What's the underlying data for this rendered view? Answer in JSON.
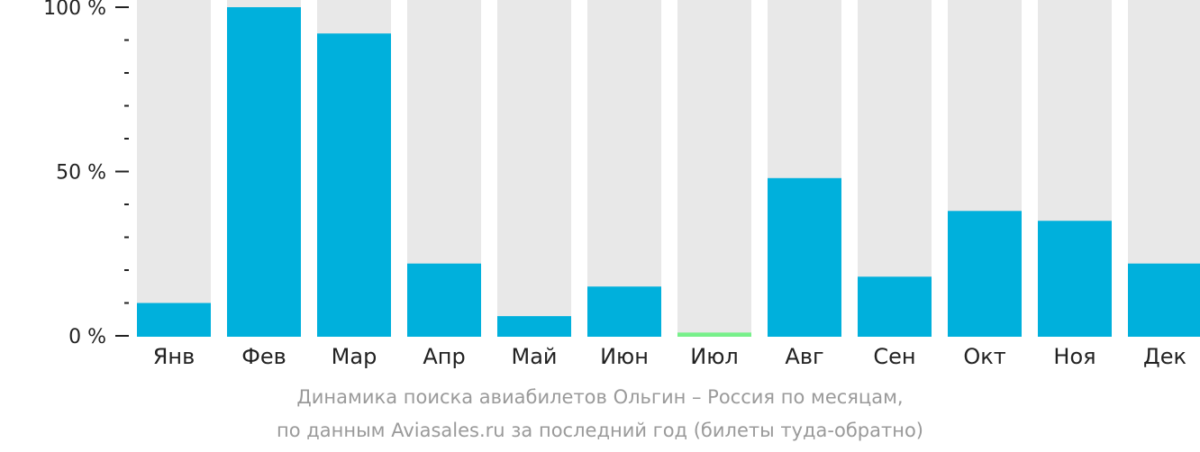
{
  "chart_data": {
    "type": "bar",
    "categories": [
      "Янв",
      "Фев",
      "Мар",
      "Апр",
      "Май",
      "Июн",
      "Июл",
      "Авг",
      "Сен",
      "Окт",
      "Ноя",
      "Дек"
    ],
    "values": [
      10,
      100,
      92,
      22,
      6,
      15,
      1,
      48,
      18,
      38,
      35,
      22
    ],
    "highlight_index": 6,
    "ylim": [
      0,
      100
    ],
    "yticks": [
      "0 %",
      "50 %",
      "100 %"
    ],
    "grid": false,
    "caption_line1": "Динамика поиска авиабилетов Ольгин – Россия по месяцам,",
    "caption_line2": "по данным Aviasales.ru за последний год (билеты туда-обратно)"
  },
  "colors": {
    "bar": "#00b0dc",
    "highlight": "#77f08a",
    "track": "#e8e8e8",
    "axis": "#222222"
  }
}
